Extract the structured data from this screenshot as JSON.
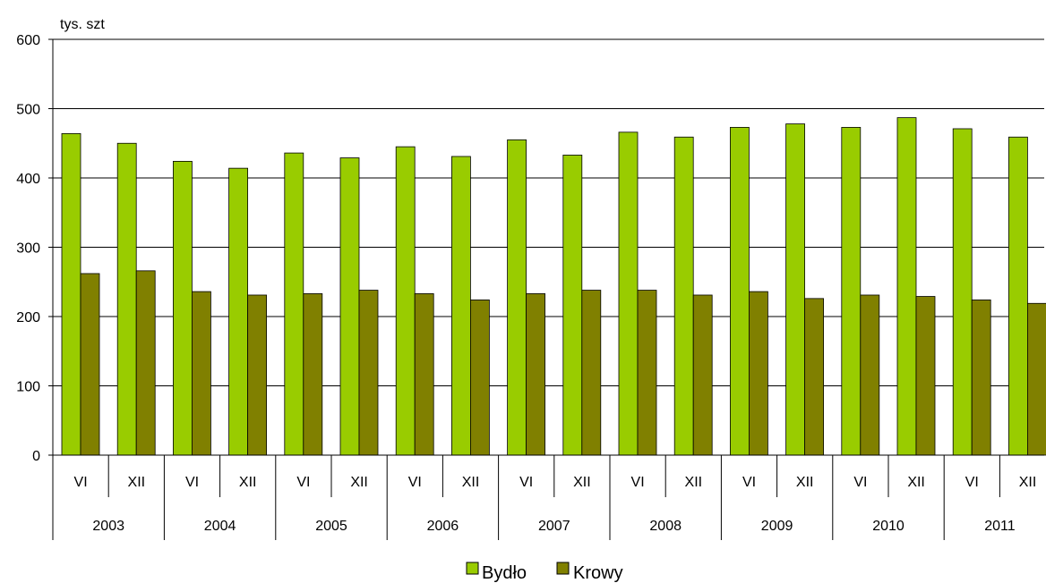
{
  "chart_data": {
    "type": "bar",
    "ylabel": "tys. szt",
    "ylim": [
      0,
      600
    ],
    "yticks": [
      "0",
      "100",
      "200",
      "300",
      "400",
      "500",
      "600"
    ],
    "grid": true,
    "legend_position": "bottom-center",
    "categories": [
      "VI",
      "XII",
      "VI",
      "XII",
      "VI",
      "XII",
      "VI",
      "XII",
      "VI",
      "XII",
      "VI",
      "XII",
      "VI",
      "XII",
      "VI",
      "XII",
      "VI",
      "XII"
    ],
    "groups": [
      "2003",
      "2004",
      "2005",
      "2006",
      "2007",
      "2008",
      "2009",
      "2010",
      "2011"
    ],
    "series": [
      {
        "name": "Bydło",
        "color": "#99CC00",
        "values": [
          464,
          450,
          424,
          414,
          436,
          429,
          445,
          431,
          455,
          433,
          466,
          459,
          473,
          478,
          473,
          487,
          471,
          459
        ]
      },
      {
        "name": "Krowy",
        "color": "#808000",
        "values": [
          262,
          266,
          236,
          231,
          233,
          238,
          233,
          224,
          233,
          238,
          238,
          231,
          236,
          226,
          231,
          229,
          224,
          219
        ]
      }
    ]
  }
}
